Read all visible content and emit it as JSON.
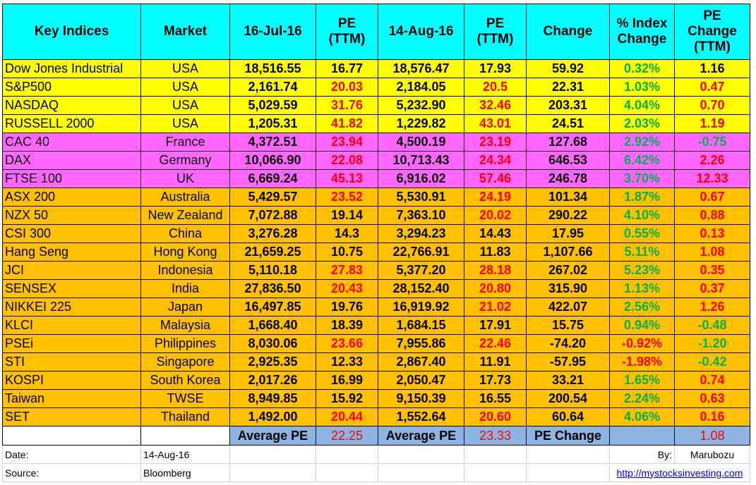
{
  "headers": [
    "Key Indices",
    "Market",
    "16-Jul-16",
    "PE\n(TTM)",
    "14-Aug-16",
    "PE\n(TTM)",
    "Change",
    "% Index\nChange",
    "PE\nChange\n(TTM)"
  ],
  "colors": {
    "header": "#00ffff",
    "us": "#ffff00",
    "europe": "#ff66ff",
    "asia": "#ffc000",
    "average": "#8db4e2",
    "positive": "#00b050",
    "negative": "#ff0000"
  },
  "rows": [
    {
      "index": "Dow Jones Industrial",
      "market": "USA",
      "v1": "18,516.55",
      "pe1": "16.77",
      "v2": "18,576.47",
      "pe2": "17.93",
      "change": "59.92",
      "pct": "0.32%",
      "pec": "1.16",
      "group": "us",
      "pe1c": "dk",
      "pe2c": "dk",
      "pctc": "pos",
      "pecc": "dk"
    },
    {
      "index": "S&P500",
      "market": "USA",
      "v1": "2,161.74",
      "pe1": "20.03",
      "v2": "2,184.05",
      "pe2": "20.5",
      "change": "22.31",
      "pct": "1.03%",
      "pec": "0.47",
      "group": "us",
      "pe1c": "neg",
      "pe2c": "neg",
      "pctc": "pos",
      "pecc": "neg"
    },
    {
      "index": "NASDAQ",
      "market": "USA",
      "v1": "5,029.59",
      "pe1": "31.76",
      "v2": "5,232.90",
      "pe2": "32.46",
      "change": "203.31",
      "pct": "4.04%",
      "pec": "0.70",
      "group": "us",
      "pe1c": "neg",
      "pe2c": "neg",
      "pctc": "pos",
      "pecc": "neg"
    },
    {
      "index": "RUSSELL 2000",
      "market": "USA",
      "v1": "1,205.31",
      "pe1": "41.82",
      "v2": "1,229.82",
      "pe2": "43.01",
      "change": "24.51",
      "pct": "2.03%",
      "pec": "1.19",
      "group": "us",
      "pe1c": "neg",
      "pe2c": "neg",
      "pctc": "pos",
      "pecc": "neg"
    },
    {
      "index": "CAC 40",
      "market": "France",
      "v1": "4,372.51",
      "pe1": "23.94",
      "v2": "4,500.19",
      "pe2": "23.19",
      "change": "127.68",
      "pct": "2.92%",
      "pec": "-0.75",
      "group": "europe",
      "pe1c": "neg",
      "pe2c": "neg",
      "pctc": "pos",
      "pecc": "pos"
    },
    {
      "index": "DAX",
      "market": "Germany",
      "v1": "10,066.90",
      "pe1": "22.08",
      "v2": "10,713.43",
      "pe2": "24.34",
      "change": "646.53",
      "pct": "6.42%",
      "pec": "2.26",
      "group": "europe",
      "pe1c": "neg",
      "pe2c": "neg",
      "pctc": "pos",
      "pecc": "neg"
    },
    {
      "index": "FTSE 100",
      "market": "UK",
      "v1": "6,669.24",
      "pe1": "45.13",
      "v2": "6,916.02",
      "pe2": "57.46",
      "change": "246.78",
      "pct": "3.70%",
      "pec": "12.33",
      "group": "europe",
      "pe1c": "neg",
      "pe2c": "neg",
      "pctc": "pos",
      "pecc": "neg"
    },
    {
      "index": "ASX 200",
      "market": "Australia",
      "v1": "5,429.57",
      "pe1": "23.52",
      "v2": "5,530.91",
      "pe2": "24.19",
      "change": "101.34",
      "pct": "1.87%",
      "pec": "0.67",
      "group": "asia",
      "pe1c": "neg",
      "pe2c": "neg",
      "pctc": "pos",
      "pecc": "neg"
    },
    {
      "index": "NZX 50",
      "market": "New Zealand",
      "v1": "7,072.88",
      "pe1": "19.14",
      "v2": "7,363.10",
      "pe2": "20.02",
      "change": "290.22",
      "pct": "4.10%",
      "pec": "0.88",
      "group": "asia",
      "pe1c": "dk",
      "pe2c": "neg",
      "pctc": "pos",
      "pecc": "neg"
    },
    {
      "index": "CSI 300",
      "market": "China",
      "v1": "3,276.28",
      "pe1": "14.3",
      "v2": "3,294.23",
      "pe2": "14.43",
      "change": "17.95",
      "pct": "0.55%",
      "pec": "0.13",
      "group": "asia",
      "pe1c": "dk",
      "pe2c": "dk",
      "pctc": "pos",
      "pecc": "neg"
    },
    {
      "index": "Hang Seng",
      "market": "Hong Kong",
      "v1": "21,659.25",
      "pe1": "10.75",
      "v2": "22,766.91",
      "pe2": "11.83",
      "change": "1,107.66",
      "pct": "5.11%",
      "pec": "1.08",
      "group": "asia",
      "pe1c": "dk",
      "pe2c": "dk",
      "pctc": "pos",
      "pecc": "neg"
    },
    {
      "index": "JCI",
      "market": "Indonesia",
      "v1": "5,110.18",
      "pe1": "27.83",
      "v2": "5,377.20",
      "pe2": "28.18",
      "change": "267.02",
      "pct": "5.23%",
      "pec": "0.35",
      "group": "asia",
      "pe1c": "neg",
      "pe2c": "neg",
      "pctc": "pos",
      "pecc": "neg"
    },
    {
      "index": "SENSEX",
      "market": "India",
      "v1": "27,836.50",
      "pe1": "20.43",
      "v2": "28,152.40",
      "pe2": "20.80",
      "change": "315.90",
      "pct": "1.13%",
      "pec": "0.37",
      "group": "asia",
      "pe1c": "neg",
      "pe2c": "neg",
      "pctc": "pos",
      "pecc": "neg"
    },
    {
      "index": "NIKKEI 225",
      "market": "Japan",
      "v1": "16,497.85",
      "pe1": "19.76",
      "v2": "16,919.92",
      "pe2": "21.02",
      "change": "422.07",
      "pct": "2.56%",
      "pec": "1.26",
      "group": "asia",
      "pe1c": "dk",
      "pe2c": "neg",
      "pctc": "pos",
      "pecc": "neg"
    },
    {
      "index": "KLCI",
      "market": "Malaysia",
      "v1": "1,668.40",
      "pe1": "18.39",
      "v2": "1,684.15",
      "pe2": "17.91",
      "change": "15.75",
      "pct": "0.94%",
      "pec": "-0.48",
      "group": "asia",
      "pe1c": "dk",
      "pe2c": "dk",
      "pctc": "pos",
      "pecc": "pos"
    },
    {
      "index": "PSEi",
      "market": "Philippines",
      "v1": "8,030.06",
      "pe1": "23.66",
      "v2": "7,955.86",
      "pe2": "22.46",
      "change": "-74.20",
      "pct": "-0.92%",
      "pec": "-1.20",
      "group": "asia",
      "pe1c": "neg",
      "pe2c": "neg",
      "pctc": "neg",
      "pecc": "pos"
    },
    {
      "index": "STI",
      "market": "Singapore",
      "v1": "2,925.35",
      "pe1": "12.33",
      "v2": "2,867.40",
      "pe2": "11.91",
      "change": "-57.95",
      "pct": "-1.98%",
      "pec": "-0.42",
      "group": "asia",
      "pe1c": "dk",
      "pe2c": "dk",
      "pctc": "neg",
      "pecc": "pos"
    },
    {
      "index": "KOSPI",
      "market": "South Korea",
      "v1": "2,017.26",
      "pe1": "16.99",
      "v2": "2,050.47",
      "pe2": "17.73",
      "change": "33.21",
      "pct": "1.65%",
      "pec": "0.74",
      "group": "asia",
      "pe1c": "dk",
      "pe2c": "dk",
      "pctc": "pos",
      "pecc": "neg"
    },
    {
      "index": "Taiwan",
      "market": "TWSE",
      "v1": "8,949.85",
      "pe1": "15.92",
      "v2": "9,150.39",
      "pe2": "16.55",
      "change": "200.54",
      "pct": "2.24%",
      "pec": "0.63",
      "group": "asia",
      "pe1c": "dk",
      "pe2c": "dk",
      "pctc": "pos",
      "pecc": "neg"
    },
    {
      "index": "SET",
      "market": "Thailand",
      "v1": "1,492.00",
      "pe1": "20.44",
      "v2": "1,552.64",
      "pe2": "20.60",
      "change": "60.64",
      "pct": "4.06%",
      "pec": "0.16",
      "group": "asia",
      "pe1c": "neg",
      "pe2c": "neg",
      "pctc": "pos",
      "pecc": "neg"
    }
  ],
  "average": {
    "label1": "Average PE",
    "value1": "22.25",
    "label2": "Average PE",
    "value2": "23.33",
    "label3": "PE Change",
    "value3": "1.08"
  },
  "footer": {
    "date_label": "Date:",
    "date_value": "14-Aug-16",
    "by_label": "By:",
    "by_value": "Marubozu",
    "source_label": "Source:",
    "source_value": "Bloomberg",
    "link": "http://mystocksinvesting.com"
  }
}
